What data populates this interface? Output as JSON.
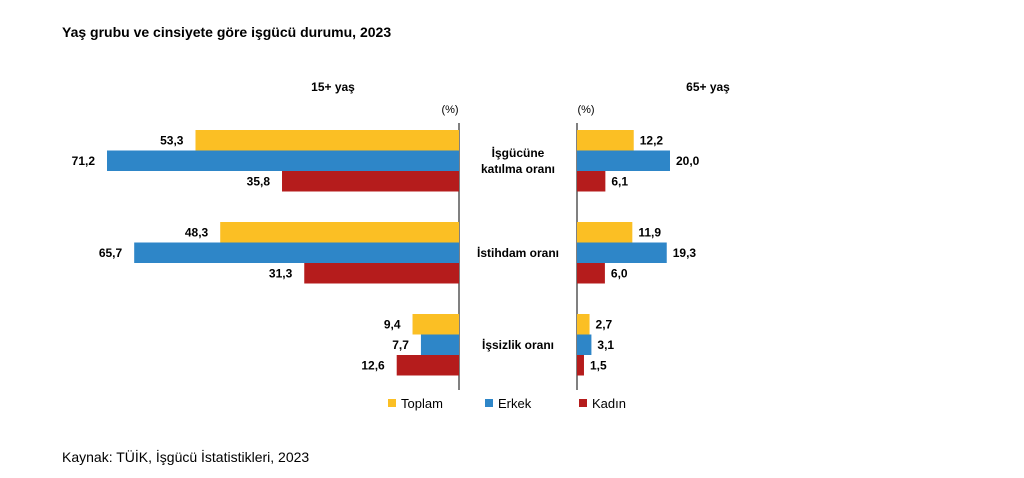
{
  "chart_data": {
    "type": "bar",
    "title": "Yaş grubu ve cinsiyete göre işgücü durumu, 2023",
    "unit": "(%)",
    "categories": [
      [
        "İşgücüne",
        "katılma oranı"
      ],
      [
        "İstihdam oranı"
      ],
      [
        "İşsizlik oranı"
      ]
    ],
    "panels": [
      {
        "name": "15+ yaş",
        "direction": "left",
        "series": [
          {
            "name": "Toplam",
            "values": [
              53.3,
              48.3,
              9.4
            ],
            "labels": [
              "53,3",
              "48,3",
              "9,4"
            ]
          },
          {
            "name": "Erkek",
            "values": [
              71.2,
              65.7,
              7.7
            ],
            "labels": [
              "71,2",
              "65,7",
              "7,7"
            ]
          },
          {
            "name": "Kadın",
            "values": [
              35.8,
              31.3,
              12.6
            ],
            "labels": [
              "35,8",
              "31,3",
              "12,6"
            ]
          }
        ]
      },
      {
        "name": "65+ yaş",
        "direction": "right",
        "series": [
          {
            "name": "Toplam",
            "values": [
              12.2,
              11.9,
              2.7
            ],
            "labels": [
              "12,2",
              "11,9",
              "2,7"
            ]
          },
          {
            "name": "Erkek",
            "values": [
              20.0,
              19.3,
              3.1
            ],
            "labels": [
              "20,0",
              "19,3",
              "3,1"
            ]
          },
          {
            "name": "Kadın",
            "values": [
              6.1,
              6.0,
              1.5
            ],
            "labels": [
              "6,1",
              "6,0",
              "1,5"
            ]
          }
        ]
      }
    ],
    "colors": {
      "Toplam": "#FBBF24",
      "Erkek": "#2E86C8",
      "Kadın": "#B51C1C"
    },
    "legend": [
      "Toplam",
      "Erkek",
      "Kadın"
    ],
    "legend_position": "bottom-center"
  },
  "source": "Kaynak: TÜİK, İşgücü İstatistikleri, 2023"
}
